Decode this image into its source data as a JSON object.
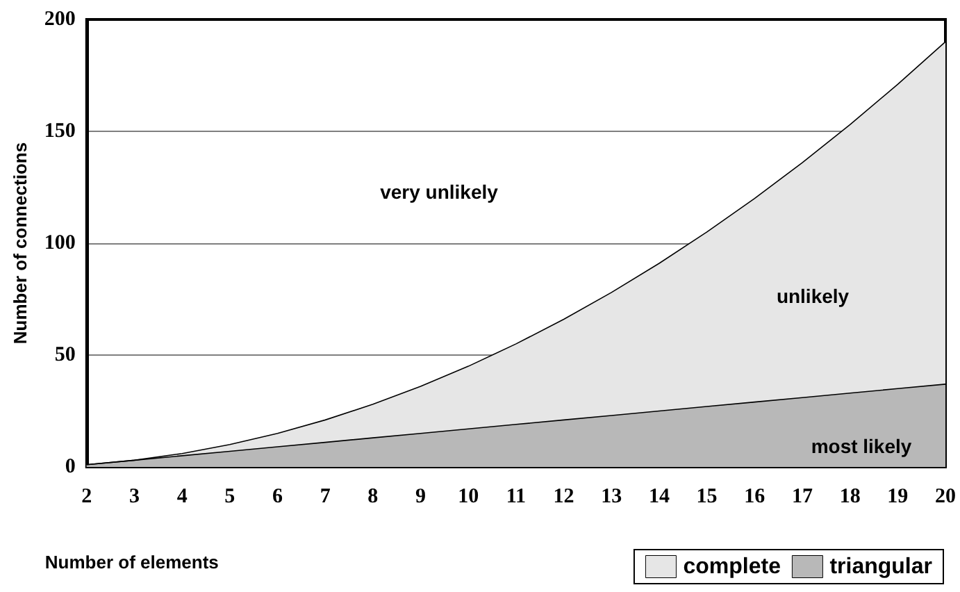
{
  "chart_data": {
    "type": "area",
    "xlabel": "Number of elements",
    "ylabel": "Number of connections",
    "categories": [
      "2",
      "3",
      "4",
      "5",
      "6",
      "7",
      "8",
      "9",
      "10",
      "11",
      "12",
      "13",
      "14",
      "15",
      "16",
      "17",
      "18",
      "19",
      "20"
    ],
    "series": [
      {
        "name": "complete",
        "color": "#e6e6e6",
        "values": [
          1,
          3,
          6,
          10,
          15,
          21,
          28,
          36,
          45,
          55,
          66,
          78,
          91,
          105,
          120,
          136,
          153,
          171,
          190
        ]
      },
      {
        "name": "triangular",
        "color": "#b8b8b8",
        "values": [
          1,
          3,
          5,
          7,
          9,
          11,
          13,
          15,
          17,
          19,
          21,
          23,
          25,
          27,
          29,
          31,
          33,
          35,
          37
        ]
      }
    ],
    "ylim": [
      0,
      200
    ],
    "yticks": [
      0,
      50,
      100,
      150,
      200
    ],
    "grid": "y",
    "legend": "bottom right",
    "annotations": [
      "very unlikely",
      "unlikely",
      "most likely"
    ]
  }
}
